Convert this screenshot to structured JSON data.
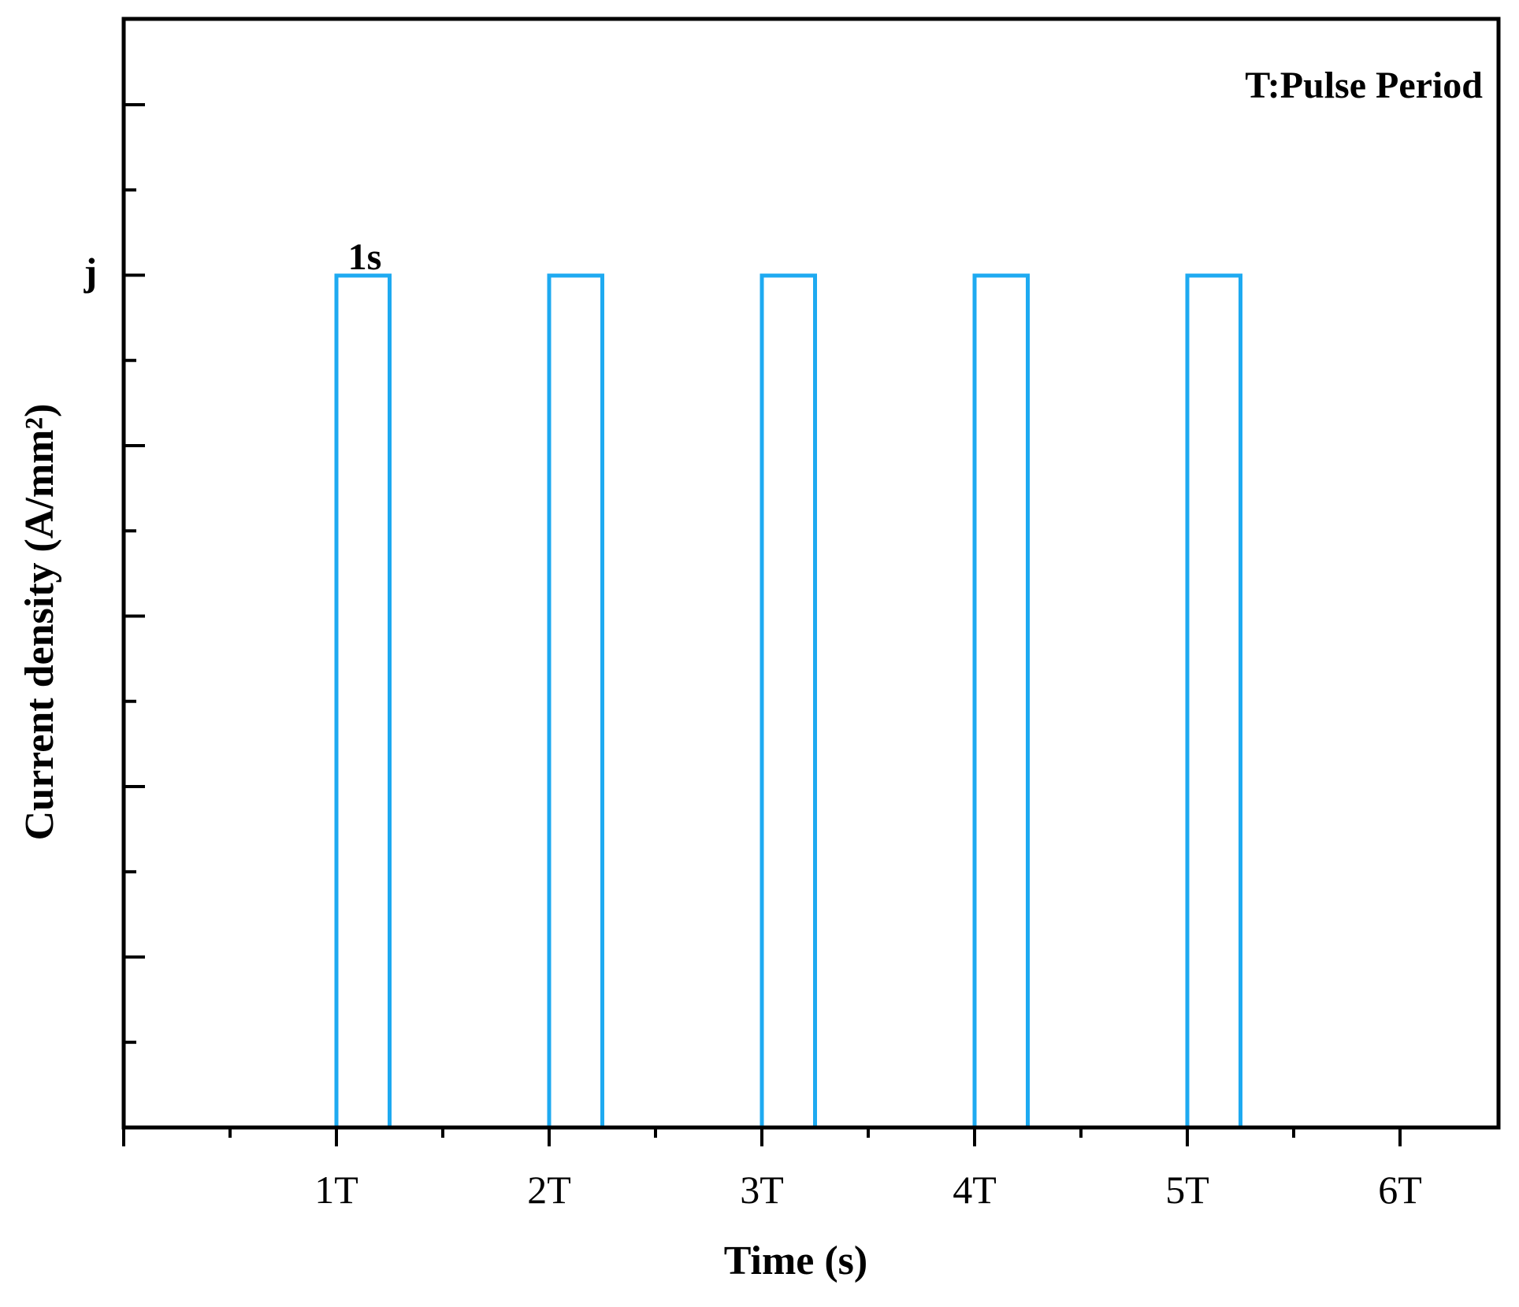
{
  "chart_data": {
    "type": "line",
    "title": "",
    "xlabel": "Time (s)",
    "ylabel": "Current density (A/mm²)",
    "xlim": [
      0,
      6.5
    ],
    "ylim": [
      0,
      1
    ],
    "x_ticks": [
      {
        "value": 1,
        "label": "1T"
      },
      {
        "value": 2,
        "label": "2T"
      },
      {
        "value": 3,
        "label": "3T"
      },
      {
        "value": 4,
        "label": "4T"
      },
      {
        "value": 5,
        "label": "5T"
      },
      {
        "value": 6,
        "label": "6T"
      }
    ],
    "y_ticks": [
      {
        "value": 1,
        "label": "j"
      }
    ],
    "grid": false,
    "series": [
      {
        "color": "#1eaaf1",
        "x": [
          0,
          1,
          1,
          1.25,
          1.25,
          2,
          2,
          2.25,
          2.25,
          3,
          3,
          3.25,
          3.25,
          4,
          4,
          4.25,
          4.25,
          5,
          5,
          5.25,
          5.25,
          6
        ],
        "y": [
          0,
          0,
          1,
          1,
          0,
          0,
          1,
          1,
          0,
          0,
          1,
          1,
          0,
          0,
          1,
          1,
          0,
          0,
          1,
          1,
          0,
          0
        ]
      }
    ],
    "annotations": [
      {
        "text": "T:Pulse Period"
      },
      {
        "text": "1s"
      }
    ]
  }
}
